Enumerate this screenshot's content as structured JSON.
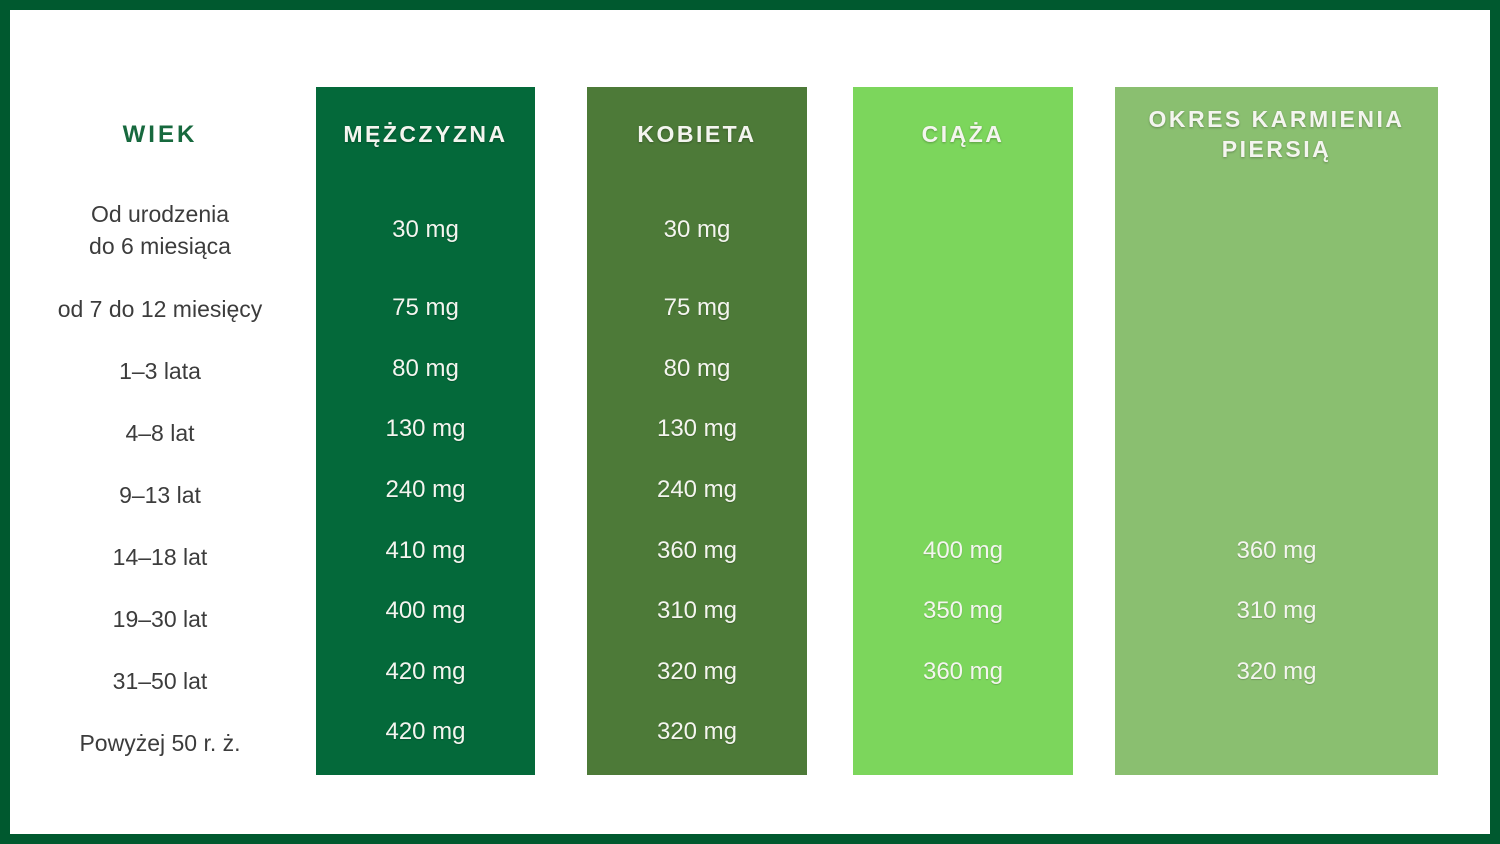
{
  "chart_data": {
    "type": "table",
    "columns": [
      "WIEK",
      "MĘŻCZYZNA",
      "KOBIETA",
      "CIĄŻA",
      "OKRES KARMIENIA PIERSIĄ"
    ],
    "unit": "mg",
    "rows": [
      {
        "wiek": "Od urodzenia\ndo 6 miesiąca",
        "mezczyzna": "30 mg",
        "kobieta": "30 mg",
        "ciaza": "",
        "karmienie": ""
      },
      {
        "wiek": "od 7 do 12 miesięcy",
        "mezczyzna": "75 mg",
        "kobieta": "75 mg",
        "ciaza": "",
        "karmienie": ""
      },
      {
        "wiek": "1–3 lata",
        "mezczyzna": "80 mg",
        "kobieta": "80 mg",
        "ciaza": "",
        "karmienie": ""
      },
      {
        "wiek": "4–8 lat",
        "mezczyzna": "130 mg",
        "kobieta": "130 mg",
        "ciaza": "",
        "karmienie": ""
      },
      {
        "wiek": "9–13 lat",
        "mezczyzna": "240 mg",
        "kobieta": "240 mg",
        "ciaza": "",
        "karmienie": ""
      },
      {
        "wiek": "14–18 lat",
        "mezczyzna": "410 mg",
        "kobieta": "360 mg",
        "ciaza": "400 mg",
        "karmienie": "360 mg"
      },
      {
        "wiek": "19–30 lat",
        "mezczyzna": "400 mg",
        "kobieta": "310 mg",
        "ciaza": "350 mg",
        "karmienie": "310 mg"
      },
      {
        "wiek": "31–50 lat",
        "mezczyzna": "420 mg",
        "kobieta": "320 mg",
        "ciaza": "360 mg",
        "karmienie": "320 mg"
      },
      {
        "wiek": "Powyżej 50 r. ż.",
        "mezczyzna": "420 mg",
        "kobieta": "320 mg",
        "ciaza": "",
        "karmienie": ""
      }
    ]
  },
  "colors": {
    "frame_border": "#00592f",
    "wiek_header_text": "#17693e",
    "label_text": "#3c3c3c",
    "value_text": "#f4f5ef",
    "col_mezczyzna_bg": "#04693a",
    "col_kobieta_bg": "#4d7a38",
    "col_ciaza_bg": "#7cd65c",
    "col_karmienie_bg": "#8abf70"
  }
}
